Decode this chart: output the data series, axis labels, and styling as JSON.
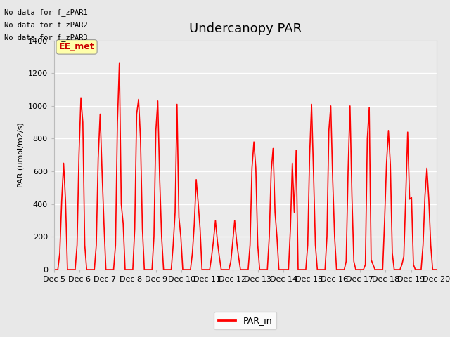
{
  "title": "Undercanopy PAR",
  "ylabel": "PAR (umol/m2/s)",
  "ylim": [
    0,
    1400
  ],
  "yticks": [
    0,
    200,
    400,
    600,
    800,
    1000,
    1200,
    1400
  ],
  "xtick_labels": [
    "Dec 5",
    "Dec 6",
    "Dec 7",
    "Dec 8",
    "Dec 9",
    "Dec 10",
    "Dec 11",
    "Dec 12",
    "Dec 13",
    "Dec 14",
    "Dec 15",
    "Dec 16",
    "Dec 17",
    "Dec 18",
    "Dec 19",
    "Dec 20"
  ],
  "line_color": "#FF0000",
  "line_width": 1.2,
  "fig_bg_color": "#E8E8E8",
  "plot_bg_color": "#EBEBEB",
  "grid_color": "#FFFFFF",
  "title_fontsize": 13,
  "axis_fontsize": 8,
  "legend_label": "PAR_in",
  "text_lines": [
    "No data for f_zPAR1",
    "No data for f_zPAR2",
    "No data for f_zPAR3"
  ],
  "annotation_text": "EE_met",
  "par_data": [
    0,
    0,
    0,
    100,
    420,
    650,
    420,
    0,
    0,
    0,
    0,
    0,
    150,
    700,
    1050,
    900,
    150,
    0,
    0,
    0,
    0,
    0,
    150,
    680,
    950,
    600,
    280,
    0,
    0,
    0,
    0,
    0,
    150,
    900,
    1260,
    400,
    280,
    0,
    0,
    0,
    0,
    0,
    250,
    950,
    1040,
    800,
    250,
    0,
    0,
    0,
    0,
    0,
    200,
    850,
    1030,
    550,
    200,
    0,
    0,
    0,
    0,
    0,
    150,
    350,
    1010,
    320,
    200,
    0,
    0,
    0,
    0,
    0,
    100,
    280,
    550,
    410,
    250,
    0,
    0,
    0,
    0,
    0,
    80,
    180,
    300,
    175,
    80,
    0,
    0,
    0,
    0,
    0,
    50,
    170,
    300,
    175,
    80,
    0,
    0,
    0,
    0,
    0,
    150,
    620,
    780,
    620,
    150,
    0,
    0,
    0,
    0,
    0,
    200,
    600,
    740,
    350,
    200,
    0,
    0,
    0,
    0,
    0,
    0,
    250,
    650,
    350,
    730,
    0,
    0,
    0,
    0,
    0,
    150,
    700,
    1010,
    600,
    150,
    0,
    0,
    0,
    0,
    0,
    200,
    850,
    1000,
    550,
    200,
    0,
    0,
    0,
    0,
    0,
    50,
    600,
    1000,
    450,
    50,
    0,
    0,
    0,
    0,
    0,
    30,
    800,
    990,
    60,
    30,
    0,
    0,
    0,
    0,
    0,
    300,
    650,
    850,
    640,
    100,
    0,
    0,
    0,
    0,
    30,
    80,
    450,
    840,
    430,
    440,
    30,
    0,
    0,
    0,
    0,
    150,
    450,
    620,
    430,
    150,
    0,
    0,
    0
  ]
}
